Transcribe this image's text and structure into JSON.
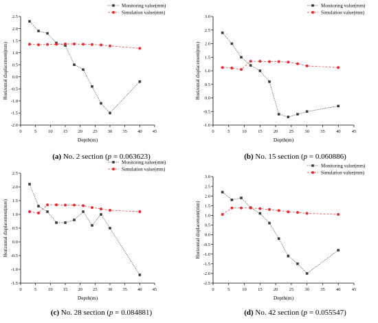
{
  "chart_data": [
    {
      "type": "line",
      "x": [
        3,
        6,
        9,
        12,
        15,
        18,
        21,
        24,
        27,
        30,
        40
      ],
      "series": [
        {
          "name": "Monitoring value(mm)",
          "values": [
            2.3,
            1.9,
            1.8,
            1.4,
            1.3,
            0.5,
            0.3,
            -0.4,
            -1.1,
            -1.5,
            -0.2
          ]
        },
        {
          "name": "Simulation value(mm)",
          "values": [
            1.35,
            1.33,
            1.34,
            1.35,
            1.36,
            1.36,
            1.35,
            1.34,
            1.32,
            1.28,
            1.18
          ]
        }
      ],
      "xlabel": "Depth(m)",
      "ylabel": "Horizontal displacement(mm)",
      "xlim": [
        0,
        45
      ],
      "ylim": [
        -2.0,
        2.5
      ],
      "xticks": [
        0,
        5,
        10,
        15,
        20,
        25,
        30,
        35,
        40,
        45
      ],
      "yticks": [
        -2.0,
        -1.5,
        -1.0,
        -0.5,
        0.0,
        0.5,
        1.0,
        1.5,
        2.0,
        2.5
      ],
      "legend_position": "top-right",
      "caption": {
        "label": "(a)",
        "text": " No. 2 section (",
        "p": "p",
        "value": " = 0.063623)"
      }
    },
    {
      "type": "line",
      "x": [
        3,
        6,
        9,
        12,
        15,
        18,
        21,
        24,
        27,
        30,
        40
      ],
      "series": [
        {
          "name": "Monitoring value(mm)",
          "values": [
            2.4,
            2.0,
            1.5,
            1.2,
            1.0,
            0.6,
            -0.6,
            -0.7,
            -0.6,
            -0.5,
            -0.3
          ]
        },
        {
          "name": "Simulation value(mm)",
          "values": [
            1.12,
            1.1,
            1.05,
            1.35,
            1.35,
            1.34,
            1.34,
            1.32,
            1.26,
            1.18,
            1.12
          ]
        }
      ],
      "xlabel": "Depth(m)",
      "ylabel": "Horizontal displacement(mm)",
      "xlim": [
        0,
        45
      ],
      "ylim": [
        -1.0,
        3.0
      ],
      "xticks": [
        0,
        5,
        10,
        15,
        20,
        25,
        30,
        35,
        40,
        45
      ],
      "yticks": [
        -1.0,
        -0.5,
        0.0,
        0.5,
        1.0,
        1.5,
        2.0,
        2.5,
        3.0
      ],
      "legend_position": "top-right",
      "caption": {
        "label": "(b)",
        "text": " No. 15 section (",
        "p": "p",
        "value": " = 0.060886)"
      }
    },
    {
      "type": "line",
      "x": [
        3,
        6,
        9,
        12,
        15,
        18,
        21,
        24,
        27,
        30,
        40
      ],
      "series": [
        {
          "name": "Monitoring value(mm)",
          "values": [
            2.1,
            1.3,
            1.1,
            0.7,
            0.7,
            0.8,
            1.1,
            0.6,
            1.0,
            0.5,
            -1.2
          ]
        },
        {
          "name": "Simulation value(mm)",
          "values": [
            1.1,
            1.05,
            1.35,
            1.35,
            1.34,
            1.34,
            1.32,
            1.25,
            1.2,
            1.15,
            1.1
          ]
        }
      ],
      "xlabel": "Depth(m)",
      "ylabel": "Horizontal displacement(mm)",
      "xlim": [
        0,
        45
      ],
      "ylim": [
        -1.5,
        2.5
      ],
      "xticks": [
        0,
        5,
        10,
        15,
        20,
        25,
        30,
        35,
        40,
        45
      ],
      "yticks": [
        -1.5,
        -1.0,
        -0.5,
        0.0,
        0.5,
        1.0,
        1.5,
        2.0,
        2.5
      ],
      "legend_position": "top-right",
      "caption": {
        "label": "(c)",
        "text": " No. 28 section (",
        "p": "p",
        "value": " = 0.084881)"
      }
    },
    {
      "type": "line",
      "x": [
        3,
        6,
        9,
        12,
        15,
        18,
        21,
        24,
        27,
        30,
        40
      ],
      "series": [
        {
          "name": "Monitoring value(mm)",
          "values": [
            2.2,
            1.8,
            1.9,
            1.4,
            1.1,
            0.6,
            -0.2,
            -1.1,
            -1.5,
            -2.0,
            -0.8
          ]
        },
        {
          "name": "Simulation value(mm)",
          "values": [
            1.05,
            1.38,
            1.38,
            1.38,
            1.35,
            1.3,
            1.25,
            1.18,
            1.15,
            1.1,
            1.05
          ]
        }
      ],
      "xlabel": "Depth(m)",
      "ylabel": "Horizontal displacement(mm)",
      "xlim": [
        0,
        45
      ],
      "ylim": [
        -2.5,
        3.0
      ],
      "xticks": [
        0,
        5,
        10,
        15,
        20,
        25,
        30,
        35,
        40,
        45
      ],
      "yticks": [
        -2.5,
        -2.0,
        -1.5,
        -1.0,
        -0.5,
        0.0,
        0.5,
        1.0,
        1.5,
        2.0,
        2.5,
        3.0
      ],
      "legend_position": "top-right",
      "caption": {
        "label": "(d)",
        "text": " No. 42 section (",
        "p": "p",
        "value": " = 0.055547)"
      }
    }
  ],
  "colors": {
    "monitoring": "#3a3a3a",
    "simulation": "#e8282c",
    "axis": "#000000"
  }
}
